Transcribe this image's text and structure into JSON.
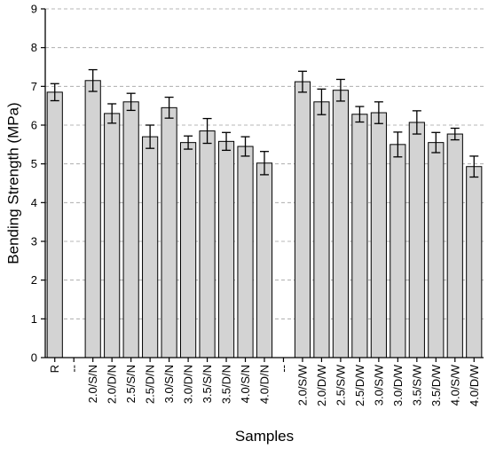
{
  "chart_data": {
    "type": "bar",
    "xlabel": "Samples",
    "ylabel": "Bending Strength (MPa)",
    "ylim": [
      0,
      9
    ],
    "yticks": [
      0,
      1,
      2,
      3,
      4,
      5,
      6,
      7,
      8,
      9
    ],
    "grid": "horizontal dashed",
    "categories": [
      "R",
      "--",
      "2.0/S/N",
      "2.0/D/N",
      "2.5/S/N",
      "2.5/D/N",
      "3.0/S/N",
      "3.0/D/N",
      "3.5/S/N",
      "3.5/D/N",
      "4.0/S/N",
      "4.0/D/N",
      "--",
      "2.0/S/W",
      "2.0/D/W",
      "2.5/S/W",
      "2.5/D/W",
      "3.0/S/W",
      "3.0/D/W",
      "3.5/S/W",
      "3.5/D/W",
      "4.0/S/W",
      "4.0/D/W"
    ],
    "values": [
      6.85,
      null,
      7.15,
      6.3,
      6.6,
      5.7,
      6.45,
      5.55,
      5.85,
      5.58,
      5.45,
      5.02,
      null,
      7.12,
      6.6,
      6.9,
      6.28,
      6.32,
      5.5,
      6.07,
      5.55,
      5.77,
      4.93
    ],
    "errors": [
      0.22,
      null,
      0.28,
      0.25,
      0.22,
      0.3,
      0.27,
      0.17,
      0.32,
      0.23,
      0.25,
      0.3,
      null,
      0.27,
      0.33,
      0.28,
      0.2,
      0.28,
      0.32,
      0.3,
      0.26,
      0.15,
      0.27
    ],
    "colors": {
      "bar_fill": "#d3d3d3",
      "bar_stroke": "#000000",
      "grid": "#a0a0a0",
      "axis": "#000000"
    }
  }
}
